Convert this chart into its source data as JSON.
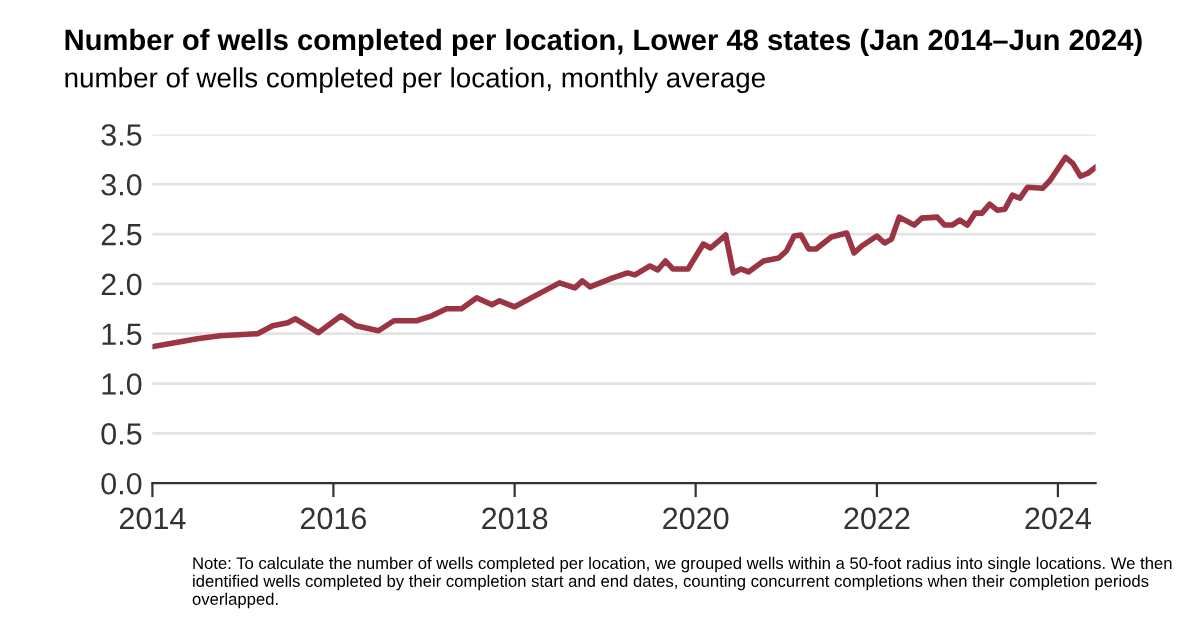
{
  "chart_data": {
    "type": "line",
    "title": "Number of wells completed per location, Lower 48 states (Jan 2014–Jun 2024)",
    "subtitle": "number of wells completed per location, monthly average",
    "annotations": [
      "Note: To calculate the number of wells completed per location, we grouped wells within a 50-foot radius into single locations. We then identified wells completed by their completion start and end dates, counting concurrent completions when their completion periods overlapped."
    ],
    "x": [
      "2014-01",
      "2014-04",
      "2014-07",
      "2014-10",
      "2015-03",
      "2015-05",
      "2015-07",
      "2015-08",
      "2015-11",
      "2016-02",
      "2016-04",
      "2016-07",
      "2016-09",
      "2016-12",
      "2017-02",
      "2017-04",
      "2017-06",
      "2017-08",
      "2017-10",
      "2017-11",
      "2018-01",
      "2018-03",
      "2018-05",
      "2018-07",
      "2018-09",
      "2018-10",
      "2018-11",
      "2019-02",
      "2019-04",
      "2019-05",
      "2019-07",
      "2019-08",
      "2019-09",
      "2019-10",
      "2019-12",
      "2020-02",
      "2020-03",
      "2020-05",
      "2020-06",
      "2020-07",
      "2020-08",
      "2020-10",
      "2020-12",
      "2021-01",
      "2021-02",
      "2021-03",
      "2021-04",
      "2021-05",
      "2021-07",
      "2021-09",
      "2021-10",
      "2021-11",
      "2022-01",
      "2022-02",
      "2022-03",
      "2022-04",
      "2022-06",
      "2022-07",
      "2022-09",
      "2022-10",
      "2022-11",
      "2022-12",
      "2023-01",
      "2023-02",
      "2023-03",
      "2023-04",
      "2023-05",
      "2023-06",
      "2023-07",
      "2023-08",
      "2023-09",
      "2023-11",
      "2023-12",
      "2024-02",
      "2024-03",
      "2024-04",
      "2024-05",
      "2024-06"
    ],
    "series": [
      {
        "color": "#9b3443",
        "values": [
          1.37,
          1.41,
          1.45,
          1.48,
          1.5,
          1.58,
          1.61,
          1.65,
          1.51,
          1.68,
          1.58,
          1.53,
          1.63,
          1.63,
          1.68,
          1.75,
          1.75,
          1.86,
          1.79,
          1.83,
          1.77,
          1.85,
          1.93,
          2.01,
          1.96,
          2.03,
          1.97,
          2.06,
          2.11,
          2.09,
          2.18,
          2.14,
          2.23,
          2.15,
          2.15,
          2.4,
          2.36,
          2.49,
          2.11,
          2.15,
          2.12,
          2.23,
          2.26,
          2.33,
          2.48,
          2.49,
          2.35,
          2.35,
          2.47,
          2.51,
          2.31,
          2.38,
          2.48,
          2.41,
          2.45,
          2.67,
          2.59,
          2.66,
          2.67,
          2.59,
          2.59,
          2.64,
          2.59,
          2.71,
          2.71,
          2.8,
          2.74,
          2.75,
          2.89,
          2.86,
          2.97,
          2.96,
          3.04,
          3.27,
          3.21,
          3.08,
          3.11,
          3.17
        ]
      }
    ],
    "xlim": [
      "2014-01",
      "2024-06"
    ],
    "xticks": [
      {
        "value": "2014-01",
        "label": "2014"
      },
      {
        "value": "2016-01",
        "label": "2016"
      },
      {
        "value": "2018-01",
        "label": "2018"
      },
      {
        "value": "2020-01",
        "label": "2020"
      },
      {
        "value": "2022-01",
        "label": "2022"
      },
      {
        "value": "2024-01",
        "label": "2024"
      }
    ],
    "ylim": [
      0,
      3.5
    ],
    "yticks": [
      {
        "value": 0,
        "label": "0.0"
      },
      0.5,
      {
        "value": 1,
        "label": "1.0"
      },
      1.5,
      {
        "value": 2,
        "label": "2.0"
      },
      2.5,
      {
        "value": 3,
        "label": "3.0"
      },
      3.5
    ],
    "grid": "y",
    "legend": false,
    "marker": "none",
    "line_style": "solid"
  }
}
